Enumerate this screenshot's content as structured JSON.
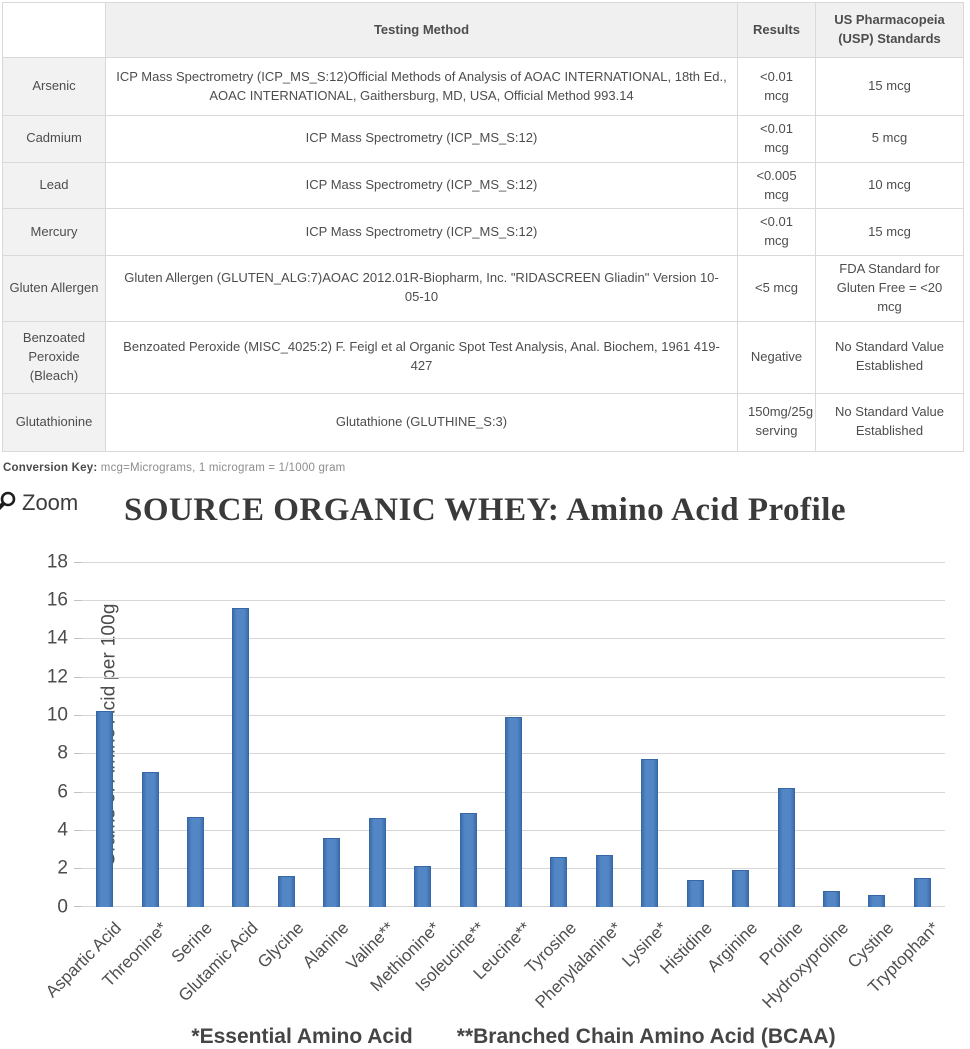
{
  "table": {
    "columns": [
      "",
      "Testing Method",
      "Results",
      "US Pharmacopeia (USP) Standards"
    ],
    "rows": [
      {
        "label": "Arsenic",
        "method": "ICP Mass Spectrometry (ICP_MS_S:12)Official Methods of Analysis of AOAC INTERNATIONAL, 18th Ed., AOAC INTERNATIONAL, Gaithersburg, MD, USA, Official Method 993.14",
        "result": "<0.01 mcg",
        "standard": "15 mcg"
      },
      {
        "label": "Cadmium",
        "method": "ICP Mass Spectrometry (ICP_MS_S:12)",
        "result": "<0.01 mcg",
        "standard": "5 mcg"
      },
      {
        "label": "Lead",
        "method": "ICP Mass Spectrometry (ICP_MS_S:12)",
        "result": "<0.005 mcg",
        "standard": "10 mcg"
      },
      {
        "label": "Mercury",
        "method": "ICP Mass Spectrometry (ICP_MS_S:12)",
        "result": "<0.01 mcg",
        "standard": "15 mcg"
      },
      {
        "label": "Gluten Allergen",
        "method": "Gluten Allergen (GLUTEN_ALG:7)AOAC 2012.01R-Biopharm, Inc. \"RIDASCREEN Gliadin\" Version 10-05-10",
        "result": "<5 mcg",
        "standard": "FDA Standard for Gluten Free = <20 mcg"
      },
      {
        "label": "Benzoated Peroxide (Bleach)",
        "method": "Benzoated Peroxide (MISC_4025:2) F. Feigl et al Organic Spot Test Analysis, Anal. Biochem, 1961 419-427",
        "result": "Negative",
        "standard": "No Standard Value Established"
      },
      {
        "label": "Glutathionine",
        "method": "Glutathione (GLUTHINE_S:3)",
        "result": "150mg/25g serving",
        "standard": "No Standard Value Established"
      }
    ]
  },
  "conversion_key": {
    "label": "Conversion Key:",
    "text": " mcg=Micrograms, 1 microgram = 1/1000 gram"
  },
  "zoom_control": {
    "label": "Zoom",
    "icon": "magnifying-glass"
  },
  "chart_data": {
    "type": "bar",
    "title": "SOURCE ORGANIC WHEY: Amino Acid Profile",
    "ylabel": "Grams of Amino Acid per 100g",
    "xlabel": "",
    "ylim": [
      0,
      18
    ],
    "ytick_step": 2,
    "grid": true,
    "legend_position": "none",
    "bar_color": "#4a7ebc",
    "categories": [
      "Aspartic Acid",
      "Threonine*",
      "Serine",
      "Glutamic Acid",
      "Glycine",
      "Alanine",
      "Valine**",
      "Methionine*",
      "Isoleucine**",
      "Leucine**",
      "Tyrosine",
      "Phenylalanine*",
      "Lysine*",
      "Histidine",
      "Arginine",
      "Proline",
      "Hydroxyproline",
      "Cystine",
      "Tryptophan*"
    ],
    "values": [
      10.2,
      7.0,
      4.7,
      15.6,
      1.6,
      3.6,
      4.6,
      2.1,
      4.9,
      9.9,
      2.6,
      2.7,
      7.7,
      1.4,
      1.9,
      6.2,
      0.8,
      0.6,
      1.5
    ],
    "footnote_left": "*Essential Amino Acid",
    "footnote_right": "**Branched Chain Amino Acid (BCAA)"
  }
}
